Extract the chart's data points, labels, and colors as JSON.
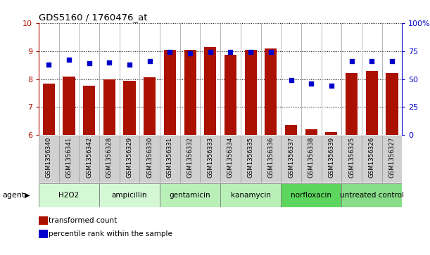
{
  "title": "GDS5160 / 1760476_at",
  "samples": [
    "GSM1356340",
    "GSM1356341",
    "GSM1356342",
    "GSM1356328",
    "GSM1356329",
    "GSM1356330",
    "GSM1356331",
    "GSM1356332",
    "GSM1356333",
    "GSM1356334",
    "GSM1356335",
    "GSM1356336",
    "GSM1356337",
    "GSM1356338",
    "GSM1356339",
    "GSM1356325",
    "GSM1356326",
    "GSM1356327"
  ],
  "bar_values": [
    7.83,
    8.08,
    7.77,
    7.98,
    7.93,
    8.07,
    9.04,
    9.03,
    9.13,
    8.87,
    9.05,
    9.08,
    6.35,
    6.22,
    6.12,
    8.22,
    8.28,
    8.22
  ],
  "blue_values": [
    63,
    67,
    64,
    65,
    63,
    66,
    74,
    73,
    74,
    74,
    74,
    74,
    49,
    46,
    44,
    66,
    66,
    66
  ],
  "agents": [
    {
      "label": "H2O2",
      "start": 0,
      "end": 3,
      "color": "#d4f7d4"
    },
    {
      "label": "ampicillin",
      "start": 3,
      "end": 6,
      "color": "#d4f7d4"
    },
    {
      "label": "gentamicin",
      "start": 6,
      "end": 9,
      "color": "#b8f0b8"
    },
    {
      "label": "kanamycin",
      "start": 9,
      "end": 12,
      "color": "#b8f0b8"
    },
    {
      "label": "norfloxacin",
      "start": 12,
      "end": 15,
      "color": "#5cd65c"
    },
    {
      "label": "untreated control",
      "start": 15,
      "end": 18,
      "color": "#88dd88"
    }
  ],
  "ylim_left": [
    6,
    10
  ],
  "ylim_right": [
    0,
    100
  ],
  "yticks_left": [
    6,
    7,
    8,
    9,
    10
  ],
  "yticks_right": [
    0,
    25,
    50,
    75,
    100
  ],
  "bar_color": "#aa1100",
  "dot_color": "#0000cc",
  "sample_box_color": "#d0d0d0",
  "plot_bg": "#ffffff"
}
